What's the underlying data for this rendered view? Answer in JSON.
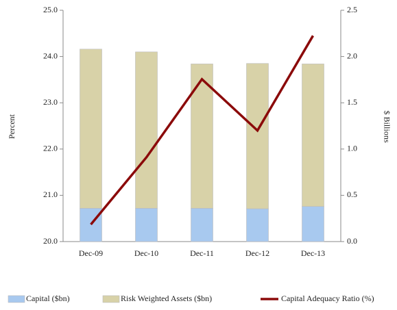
{
  "chart_data": {
    "type": "bar-line",
    "categories": [
      "Dec-09",
      "Dec-10",
      "Dec-11",
      "Dec-12",
      "Dec-13"
    ],
    "ylabel": "Percent",
    "y2label": "$ Billions",
    "ylim": [
      20,
      25
    ],
    "yticks": [
      {
        "value": 20,
        "label": "20.0"
      },
      {
        "value": 21,
        "label": "21.0"
      },
      {
        "value": 22,
        "label": "22.0"
      },
      {
        "value": 23,
        "label": "23.0"
      },
      {
        "value": 24,
        "label": "24.0"
      },
      {
        "value": 25,
        "label": "25.0"
      }
    ],
    "y2lim": [
      0,
      2.5
    ],
    "y2ticks": [
      {
        "value": 0,
        "label": "0.0"
      },
      0.5,
      {
        "value": 1,
        "label": "1.0"
      },
      1.5,
      {
        "value": 2,
        "label": "2.0"
      },
      2.5
    ],
    "series": [
      {
        "name": "Capital ($bn)",
        "type": "bar",
        "axis": "y2",
        "color": "#a8c9ef",
        "values": [
          0.36,
          0.36,
          0.36,
          0.355,
          0.38
        ]
      },
      {
        "name": "Risk Weighted Assets ($bn)",
        "type": "bar",
        "axis": "y2",
        "color": "#d8d2a8",
        "values": [
          1.72,
          1.69,
          1.56,
          1.57,
          1.54
        ]
      },
      {
        "name": "Capital Adequacy Ratio (%)",
        "type": "line",
        "axis": "y",
        "color": "#8b0a0a",
        "values": [
          20.37,
          21.82,
          23.51,
          22.4,
          24.45
        ]
      }
    ]
  }
}
